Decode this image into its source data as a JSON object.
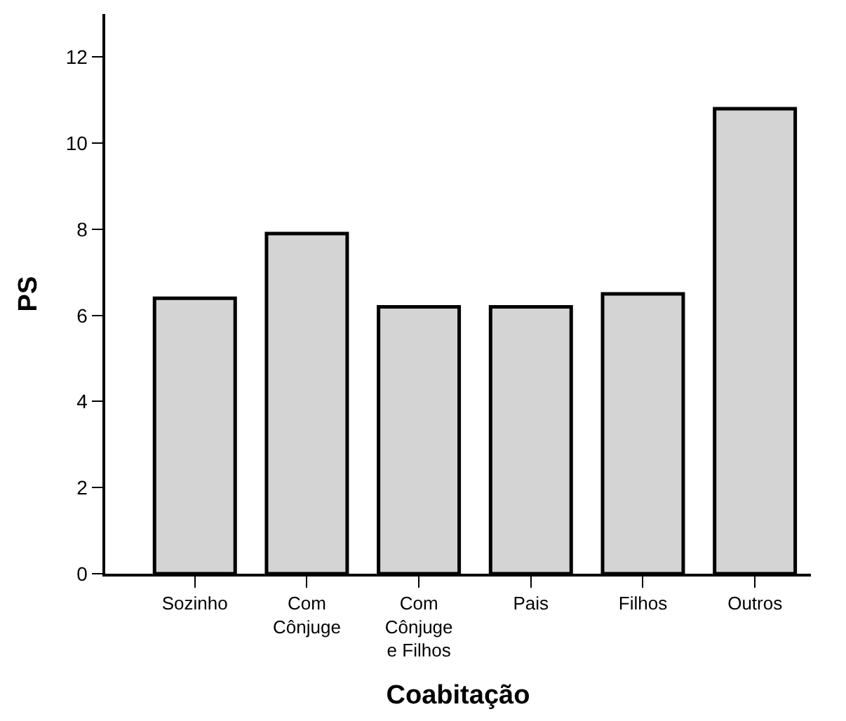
{
  "chart_data": {
    "type": "bar",
    "xlabel": "Coabitação",
    "ylabel": "PS",
    "categories": [
      "Sozinho",
      "Com\nCônjuge",
      "Com\nCônjuge\ne Filhos",
      "Pais",
      "Filhos",
      "Outros"
    ],
    "values": [
      6.4,
      7.9,
      6.2,
      6.2,
      6.5,
      10.8
    ],
    "color": "#d4d4d4",
    "ylim": [
      0,
      13
    ],
    "yticks": [
      0,
      2,
      4,
      6,
      8,
      10,
      12
    ]
  }
}
